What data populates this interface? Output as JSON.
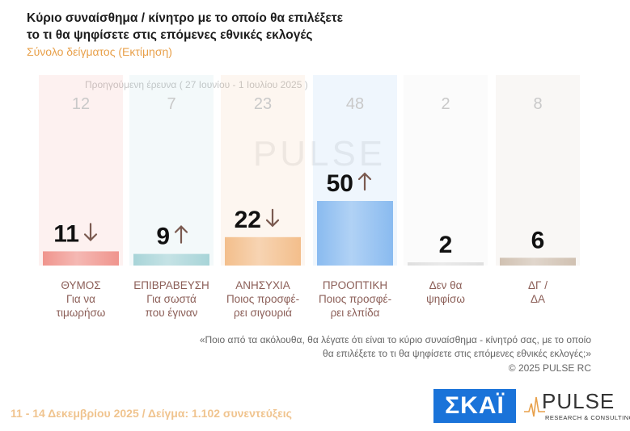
{
  "header": {
    "title_line1": "Κύριο συναίσθημα / κίνητρο με το οποίο θα επιλέξετε",
    "title_line2": "το τι θα ψηφίσετε στις επόμενες εθνικές εκλογές",
    "subtitle": "Σύνολο δείγματος  (Εκτίμηση)"
  },
  "previous_survey_label": "Προηγούμενη έρευνα ( 27 Ιουνίου - 1 Ιουλίου 2025 )",
  "colors": {
    "bar_1": "#ee8a82",
    "bar_2": "#9fd0d4",
    "bar_3": "#f2b880",
    "bar_4": "#7eb4ee",
    "bar_5": "#dcdcdc",
    "bar_6": "#ccbbaa",
    "arrow": "#7a5a50",
    "category_text": "#8b5e57"
  },
  "chart_data": {
    "type": "bar",
    "categories": [
      [
        "ΘΥΜΟΣ",
        "Για να",
        "τιμωρήσω"
      ],
      [
        "ΕΠΙΒΡΑΒΕΥΣΗ",
        "Για σωστά",
        "που έγιναν"
      ],
      [
        "ΑΝΗΣΥΧΙΑ",
        "Ποιος προσφέ-",
        "ρει σιγουριά"
      ],
      [
        "ΠΡΟΟΠΤΙΚΗ",
        "Ποιος προσφέ-",
        "ρει ελπίδα"
      ],
      [
        "Δεν θα",
        "ψηφίσω"
      ],
      [
        "ΔΓ /",
        "ΔΑ"
      ]
    ],
    "series": [
      {
        "values": [
          11,
          9,
          22,
          50,
          2,
          6
        ]
      },
      {
        "name": "Προηγούμενη έρευνα ( 27 Ιουνίου - 1 Ιουλίου 2025 )",
        "values": [
          12,
          7,
          23,
          48,
          2,
          8
        ]
      }
    ],
    "trend": [
      "down",
      "up",
      "down",
      "up",
      "",
      ""
    ],
    "ylim": [
      0,
      50
    ]
  },
  "question_line1": "«Ποιο από τα ακόλουθα, θα λέγατε ότι είναι το κύριο συναίσθημα - κίνητρό σας, με το οποίο",
  "question_line2": "θα επιλέξετε το τι θα ψηφίσετε στις επόμενες εθνικές εκλογές;»",
  "copyright": "©  2025  PULSE RC",
  "footer": "11 - 14 Δεκεμβρίου 2025  /  Δείγμα:  1.102 συνεντεύξεις",
  "logos": {
    "skai": "ΣΚΑΪ",
    "pulse_name": "PULSE",
    "pulse_tagline": "RESEARCH & CONSULTING"
  }
}
